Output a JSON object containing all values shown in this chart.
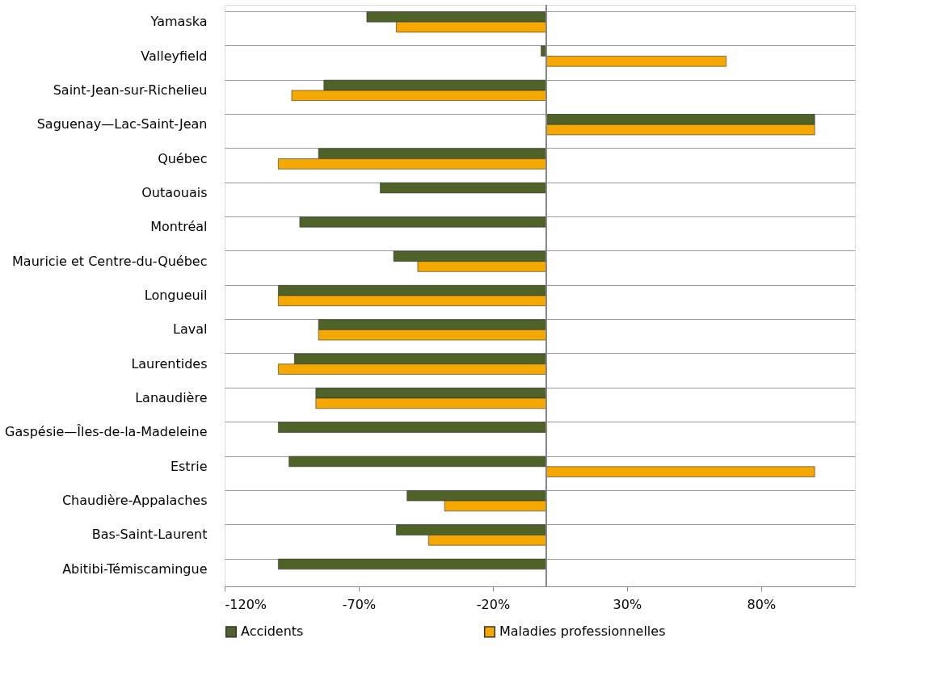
{
  "chart_data": {
    "type": "bar",
    "orientation": "horizontal",
    "categories": [
      "Yamaska",
      "Valleyfield",
      "Saint-Jean-sur-Richelieu",
      "Saguenay—Lac-Saint-Jean",
      "Québec",
      "Outaouais",
      "Montréal",
      "Mauricie et Centre-du-Québec",
      "Longueuil",
      "Laval",
      "Laurentides",
      "Lanaudière",
      "Gaspésie—Îles-de-la-Madeleine",
      "Estrie",
      "Chaudière-Appalaches",
      "Bas-Saint-Laurent",
      "Abitibi-Témiscamingue"
    ],
    "series": [
      {
        "name": "Accidents",
        "color": "#4f6228",
        "values": [
          -67,
          -2,
          -83,
          100,
          -85,
          -62,
          -92,
          -57,
          -100,
          -85,
          -94,
          -86,
          -100,
          -96,
          -52,
          -56,
          -100
        ]
      },
      {
        "name": "Maladies professionnelles",
        "color": "#f5a800",
        "values": [
          -56,
          67,
          -95,
          100,
          -100,
          null,
          null,
          -48,
          -100,
          -85,
          -100,
          -86,
          null,
          100,
          -38,
          -44,
          null
        ]
      }
    ],
    "xlim": [
      -120,
      115
    ],
    "xticks": [
      {
        "value": -120,
        "label": "-120%"
      },
      {
        "value": -70,
        "label": "-70%"
      },
      {
        "value": -20,
        "label": "-20%"
      },
      {
        "value": 30,
        "label": "30%"
      },
      {
        "value": 80,
        "label": "80%"
      }
    ],
    "grid": "y",
    "legend": "bottom"
  }
}
